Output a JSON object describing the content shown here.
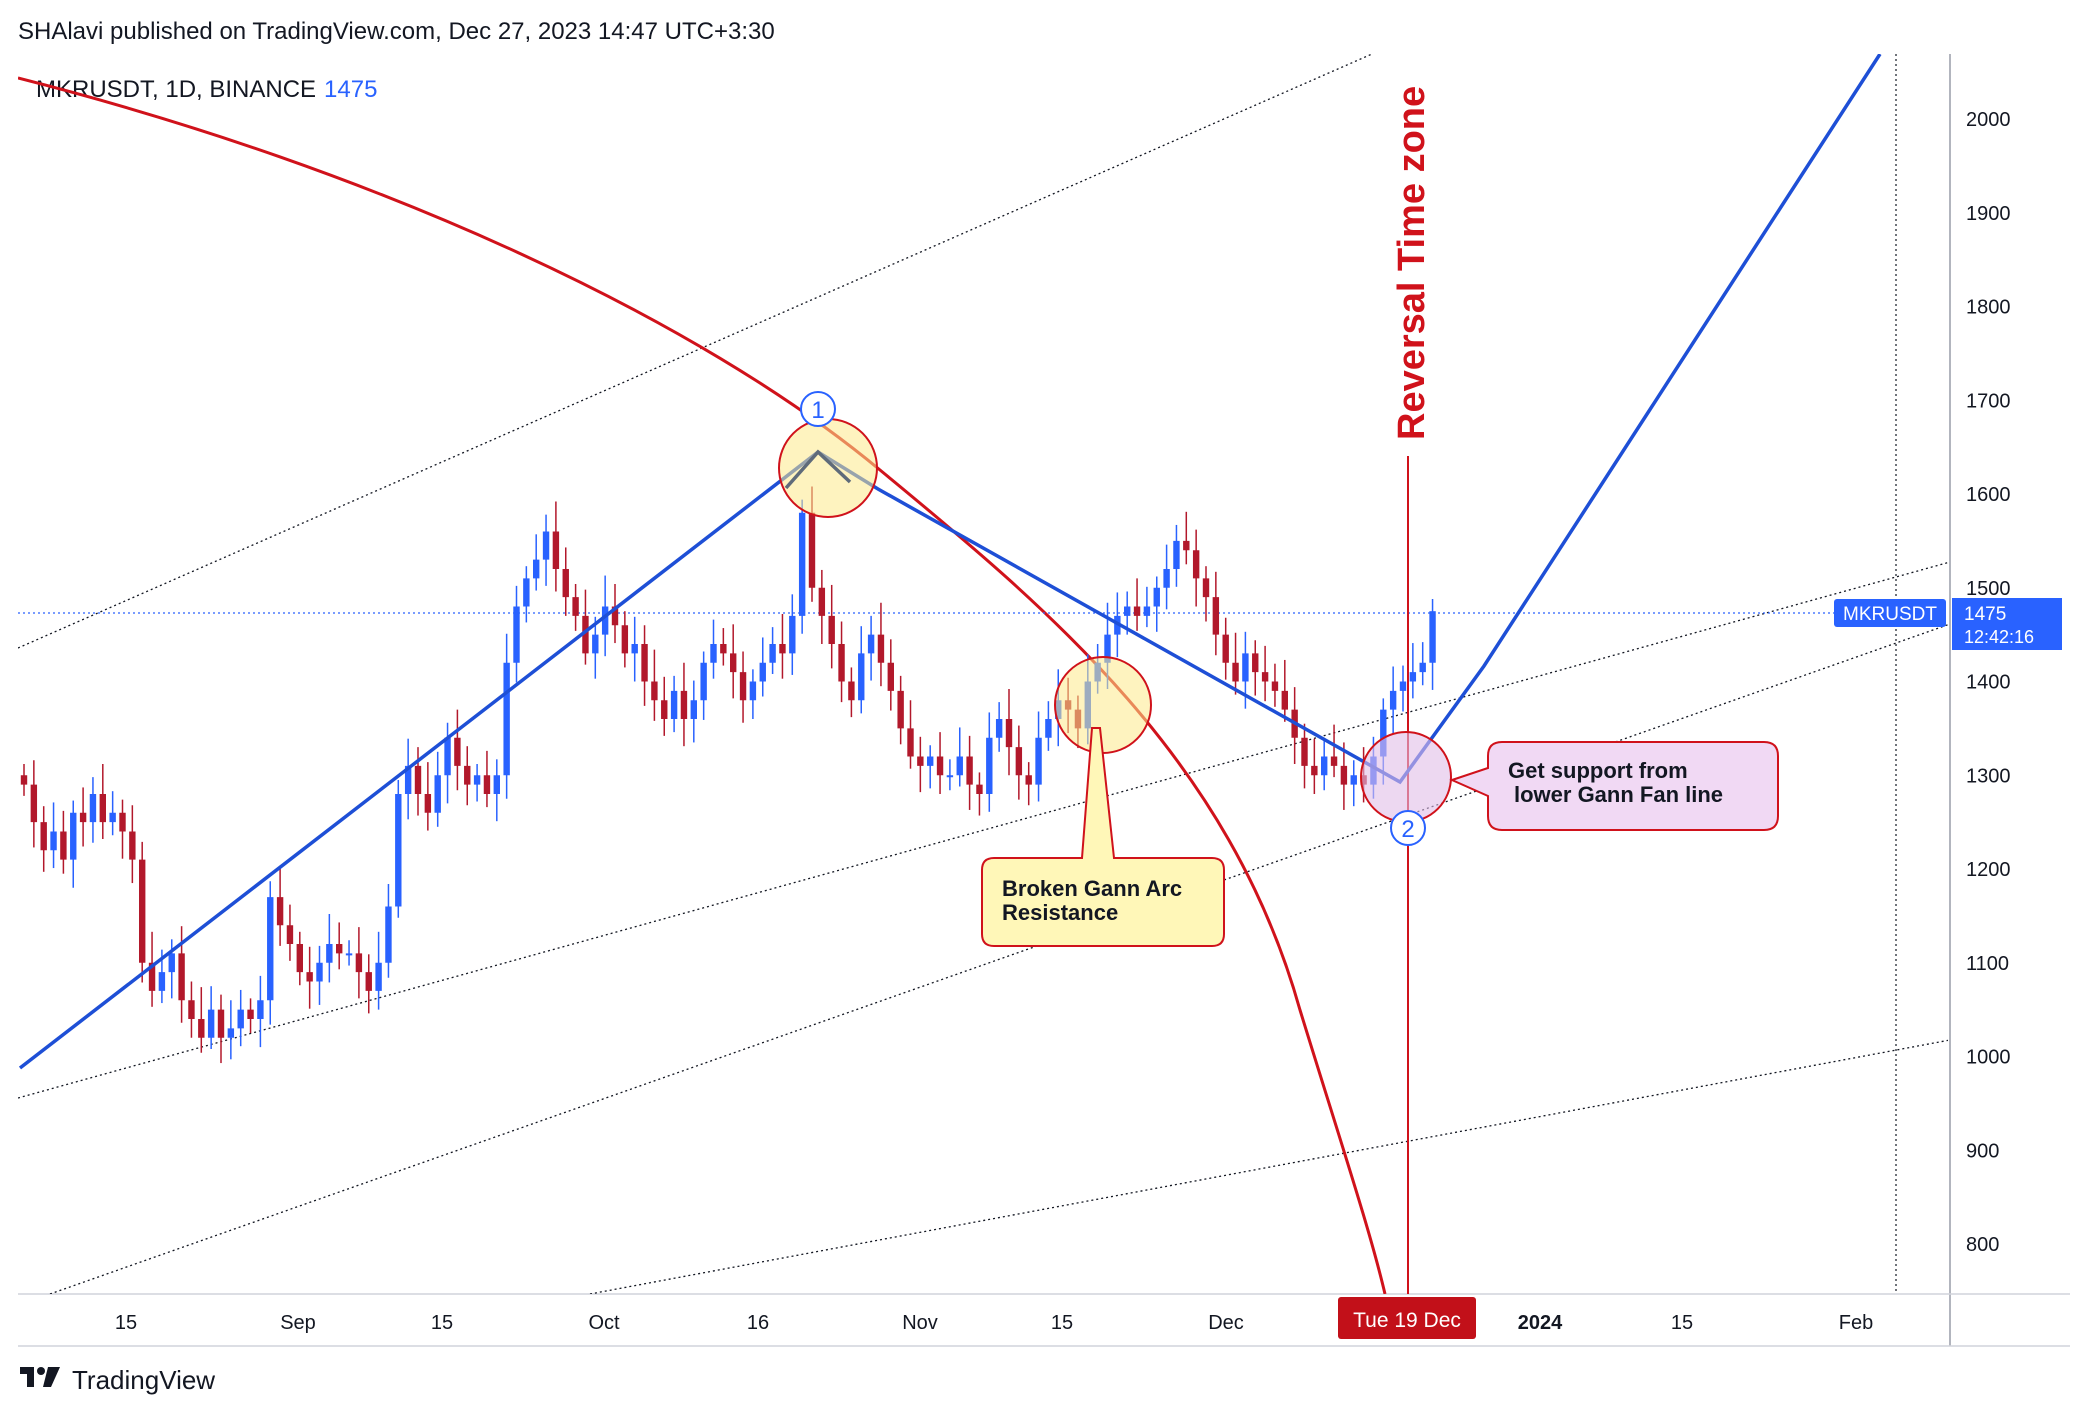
{
  "header": {
    "published": "SHAlavi published on TradingView.com, Dec 27, 2023 14:47 UTC+3:30"
  },
  "symbol": {
    "label": "MKRUSDT, 1D, BINANCE",
    "price": "1475"
  },
  "price_tag": {
    "name": "MKRUSDT",
    "price": "1475",
    "countdown": "12:42:16"
  },
  "footer": {
    "logo_icon": "tradingview-logo-icon",
    "brand": "TradingView"
  },
  "colors": {
    "up": "#2962ff",
    "down": "#b2182b",
    "arc": "#d0121b",
    "fan": "#1e4fd6",
    "annotation_red": "#d0121b"
  },
  "annotations": {
    "reversal": "Reversal Time zone",
    "date_label": "Tue 19 Dec",
    "arc_note": [
      "Broken Gann Arc",
      "Resistance"
    ],
    "support_note": [
      "Get support from",
      "lower Gann Fan line"
    ],
    "marker1": "1",
    "marker2": "2"
  },
  "chart_data": {
    "type": "candlestick",
    "title": "MKRUSDT, 1D, BINANCE",
    "y_ticks": [
      800,
      900,
      1000,
      1100,
      1200,
      1300,
      1400,
      1500,
      1600,
      1700,
      1800,
      1900,
      2000
    ],
    "x_ticks": [
      "15",
      "Sep",
      "15",
      "Oct",
      "16",
      "Nov",
      "15",
      "Dec",
      "Tue 19 Dec",
      "2024",
      "15",
      "Feb"
    ],
    "last_price": 1475,
    "closes": [
      1290,
      1250,
      1220,
      1240,
      1210,
      1260,
      1250,
      1280,
      1250,
      1260,
      1240,
      1210,
      1100,
      1070,
      1090,
      1110,
      1060,
      1040,
      1020,
      1050,
      1020,
      1030,
      1050,
      1040,
      1060,
      1170,
      1140,
      1120,
      1090,
      1080,
      1100,
      1120,
      1110,
      1110,
      1090,
      1070,
      1100,
      1160,
      1280,
      1310,
      1280,
      1260,
      1300,
      1340,
      1310,
      1290,
      1300,
      1280,
      1300,
      1420,
      1480,
      1510,
      1530,
      1560,
      1520,
      1490,
      1470,
      1430,
      1450,
      1480,
      1460,
      1430,
      1440,
      1400,
      1380,
      1360,
      1390,
      1360,
      1380,
      1420,
      1440,
      1430,
      1410,
      1380,
      1400,
      1420,
      1440,
      1430,
      1470,
      1580,
      1500,
      1470,
      1440,
      1400,
      1380,
      1430,
      1450,
      1420,
      1390,
      1350,
      1320,
      1310,
      1320,
      1300,
      1300,
      1320,
      1290,
      1280,
      1340,
      1360,
      1330,
      1300,
      1290,
      1340,
      1360,
      1380,
      1370,
      1350,
      1400,
      1420,
      1450,
      1470,
      1480,
      1470,
      1480,
      1500,
      1520,
      1550,
      1540,
      1510,
      1490,
      1450,
      1420,
      1400,
      1430,
      1410,
      1400,
      1390,
      1370,
      1340,
      1310,
      1300,
      1320,
      1310,
      1290,
      1300,
      1290,
      1320,
      1370,
      1390,
      1400,
      1410,
      1420,
      1475
    ]
  }
}
